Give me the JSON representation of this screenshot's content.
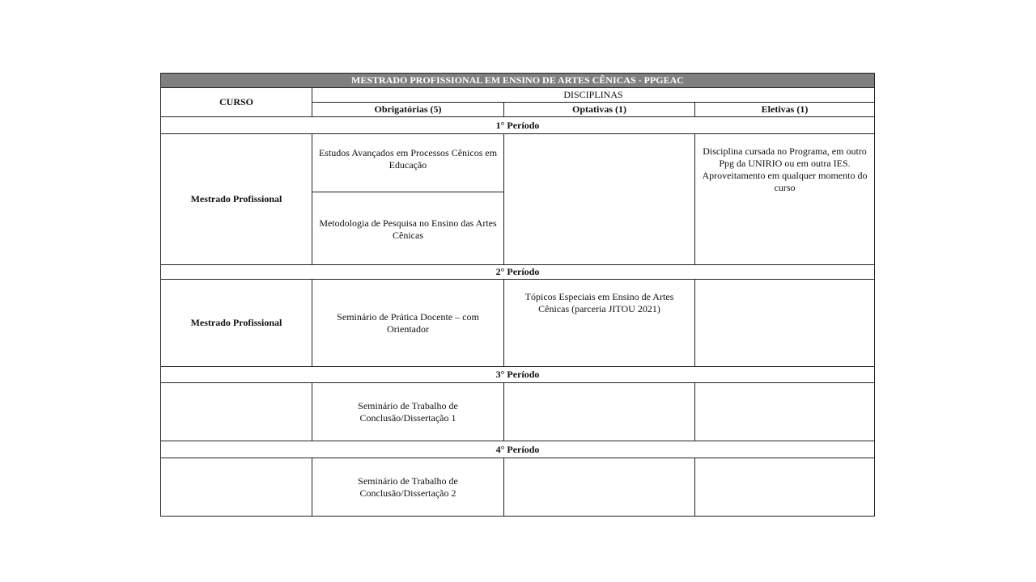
{
  "title": "MESTRADO PROFISSIONAL EM  ENSINO DE ARTES CÊNICAS - PPGEAC",
  "header": {
    "curso": "CURSO",
    "disciplinas": "DISCIPLINAS",
    "obrigatorias": "Obrigatórias (5)",
    "optativas": "Optativas (1)",
    "eletivas": "Eletivas (1)"
  },
  "periods": [
    {
      "label": "1° Período",
      "curso": "Mestrado Profissional",
      "obrigatorias": [
        "Estudos Avançados em Processos Cênicos em Educação",
        "Metodologia de Pesquisa no Ensino das Artes Cênicas"
      ],
      "optativas": "",
      "eletivas": "Disciplina cursada no Programa,  em outro Ppg da UNIRIO ou em outra IES. Aproveitamento em qualquer momento do curso"
    },
    {
      "label": "2° Período",
      "curso": "Mestrado Profissional",
      "obrigatorias": [
        "Seminário  de Prática Docente – com Orientador"
      ],
      "optativas": "Tópicos Especiais em Ensino de Artes Cênicas (parceria JITOU 2021)",
      "eletivas": ""
    },
    {
      "label": "3° Período",
      "curso": "",
      "obrigatorias": [
        "Seminário  de Trabalho de Conclusão/Dissertação  1"
      ],
      "optativas": "",
      "eletivas": ""
    },
    {
      "label": "4° Período",
      "curso": "",
      "obrigatorias": [
        "Seminário  de Trabalho de Conclusão/Dissertação 2"
      ],
      "optativas": "",
      "eletivas": ""
    }
  ]
}
